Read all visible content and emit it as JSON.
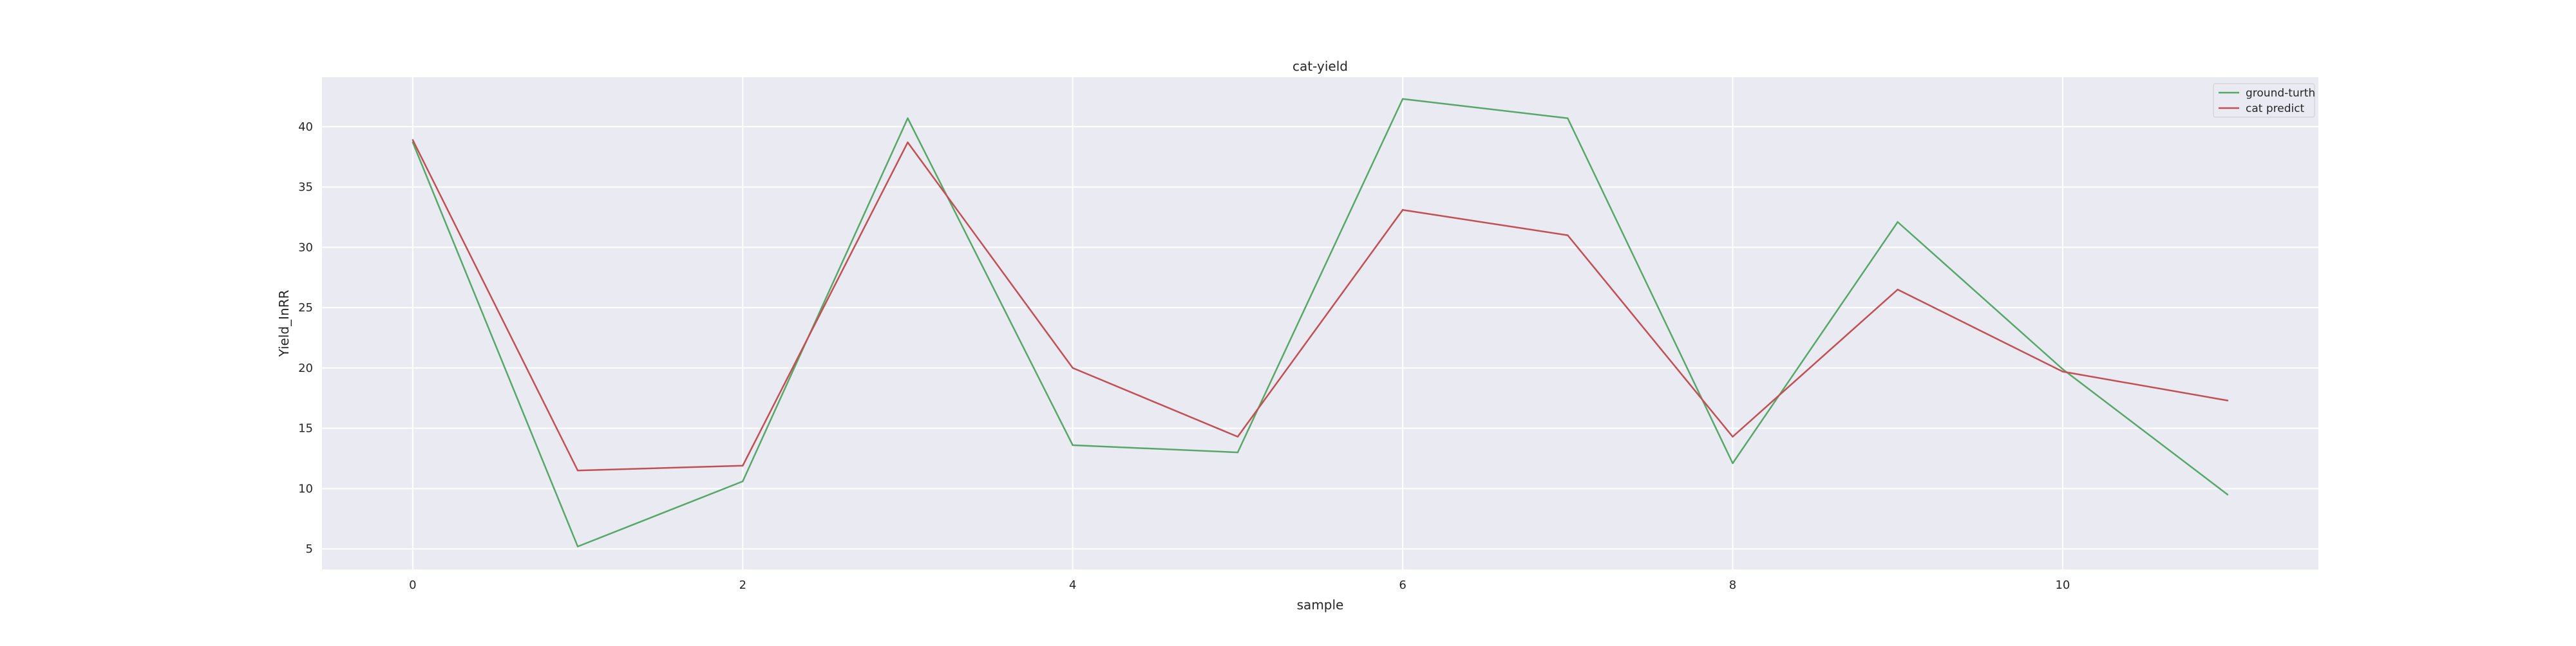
{
  "chart_data": {
    "type": "line",
    "title": "cat-yield",
    "xlabel": "sample",
    "ylabel": "Yield_InRR",
    "xlim": [
      -0.55,
      11.55
    ],
    "ylim": [
      3.3,
      44.1
    ],
    "xticks": [
      0,
      2,
      4,
      6,
      8,
      10
    ],
    "yticks": [
      5,
      10,
      15,
      20,
      25,
      30,
      35,
      40
    ],
    "grid": true,
    "legend_position": "top-right",
    "background_color": "#eaeaf2",
    "grid_color": "#ffffff",
    "x": [
      0,
      1,
      2,
      3,
      4,
      5,
      6,
      7,
      8,
      9,
      10,
      11
    ],
    "series": [
      {
        "name": "ground-turth",
        "color": "#55a868",
        "values": [
          38.7,
          5.2,
          10.6,
          40.7,
          13.6,
          13.0,
          42.3,
          40.7,
          12.1,
          32.1,
          19.9,
          9.5
        ]
      },
      {
        "name": "cat predict",
        "color": "#c44e52",
        "values": [
          38.9,
          11.5,
          11.9,
          38.7,
          20.0,
          14.3,
          33.1,
          31.0,
          14.3,
          26.5,
          19.7,
          17.3
        ]
      }
    ]
  }
}
